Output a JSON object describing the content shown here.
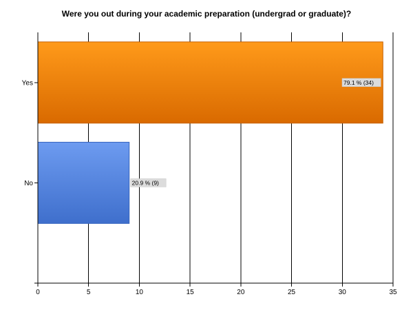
{
  "chart_data": {
    "type": "bar",
    "orientation": "horizontal",
    "title": "Were you out during your academic preparation (undergrad or graduate)?",
    "xlabel": "",
    "ylabel": "",
    "xlim": [
      0,
      35
    ],
    "x_ticks": [
      0,
      5,
      10,
      15,
      20,
      25,
      30,
      35
    ],
    "grid": "vertical",
    "categories": [
      "Yes",
      "No"
    ],
    "values": [
      34,
      9
    ],
    "data_labels": [
      "79.1 % (34)",
      "20.9 % (9)"
    ],
    "bar_colors": [
      {
        "light": "#ff9a1a",
        "dark": "#d96a00",
        "edge": "#c56000"
      },
      {
        "light": "#6d9bf0",
        "dark": "#3f6fcc",
        "edge": "#3563bd"
      }
    ]
  }
}
